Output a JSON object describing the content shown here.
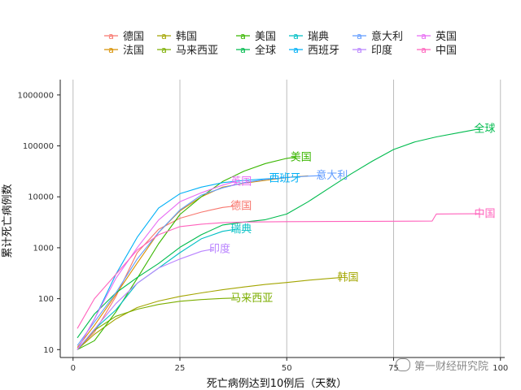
{
  "chart_data": {
    "type": "line",
    "title": "",
    "xlabel": "死亡病例达到10例后（天数）",
    "ylabel": "累计死亡病例数",
    "x_ticks": [
      0,
      25,
      50,
      75,
      100
    ],
    "y_ticks": [
      10,
      100,
      1000,
      10000,
      100000,
      1000000
    ],
    "y_tick_labels": [
      "10",
      "100",
      "1000",
      "10000",
      "100000",
      "1000000"
    ],
    "xlim": [
      -3,
      101
    ],
    "ylim": [
      7,
      2000000
    ],
    "y_scale": "log10",
    "grid": "vertical-major",
    "legend_position": "top",
    "series": [
      {
        "name": "德国",
        "color": "#F8766D",
        "end_label": "德国",
        "points": [
          [
            1,
            10
          ],
          [
            5,
            22
          ],
          [
            10,
            110
          ],
          [
            15,
            800
          ],
          [
            20,
            2300
          ],
          [
            25,
            3800
          ],
          [
            30,
            5000
          ],
          [
            35,
            6200
          ],
          [
            38,
            6600
          ]
        ]
      },
      {
        "name": "法国",
        "color": "#D89000",
        "end_label": "",
        "points": [
          [
            1,
            11
          ],
          [
            5,
            30
          ],
          [
            10,
            120
          ],
          [
            15,
            500
          ],
          [
            20,
            2000
          ],
          [
            25,
            5300
          ],
          [
            30,
            10000
          ],
          [
            35,
            15500
          ],
          [
            40,
            18500
          ],
          [
            45,
            21000
          ],
          [
            50,
            24000
          ],
          [
            55,
            25800
          ]
        ]
      },
      {
        "name": "韩国",
        "color": "#A3A500",
        "end_label": "韩国",
        "points": [
          [
            1,
            10
          ],
          [
            5,
            20
          ],
          [
            10,
            40
          ],
          [
            15,
            67
          ],
          [
            20,
            90
          ],
          [
            25,
            111
          ],
          [
            30,
            130
          ],
          [
            35,
            150
          ],
          [
            40,
            170
          ],
          [
            45,
            190
          ],
          [
            50,
            208
          ],
          [
            55,
            230
          ],
          [
            60,
            250
          ],
          [
            63,
            262
          ]
        ]
      },
      {
        "name": "马来西亚",
        "color": "#7CAE00",
        "end_label": "马来西亚",
        "points": [
          [
            1,
            10
          ],
          [
            5,
            24
          ],
          [
            10,
            45
          ],
          [
            15,
            62
          ],
          [
            20,
            77
          ],
          [
            25,
            89
          ],
          [
            30,
            96
          ],
          [
            35,
            101
          ],
          [
            38,
            103
          ]
        ]
      },
      {
        "name": "美国",
        "color": "#39B600",
        "end_label": "美国",
        "points": [
          [
            1,
            10
          ],
          [
            5,
            15
          ],
          [
            10,
            55
          ],
          [
            15,
            250
          ],
          [
            20,
            1200
          ],
          [
            25,
            4500
          ],
          [
            30,
            10000
          ],
          [
            35,
            20000
          ],
          [
            40,
            32000
          ],
          [
            45,
            45000
          ],
          [
            50,
            57000
          ],
          [
            52,
            60000
          ]
        ]
      },
      {
        "name": "全球",
        "color": "#00BB4E",
        "end_label": "全球",
        "points": [
          [
            1,
            17
          ],
          [
            5,
            50
          ],
          [
            10,
            130
          ],
          [
            15,
            260
          ],
          [
            20,
            490
          ],
          [
            25,
            1020
          ],
          [
            30,
            1800
          ],
          [
            35,
            2800
          ],
          [
            40,
            3200
          ],
          [
            45,
            3550
          ],
          [
            50,
            4600
          ],
          [
            55,
            8000
          ],
          [
            60,
            15000
          ],
          [
            65,
            28000
          ],
          [
            70,
            50000
          ],
          [
            75,
            85000
          ],
          [
            80,
            120000
          ],
          [
            85,
            150000
          ],
          [
            90,
            180000
          ],
          [
            95,
            215000
          ]
        ]
      },
      {
        "name": "瑞典",
        "color": "#00BFC4",
        "end_label": "瑞典",
        "points": [
          [
            1,
            10
          ],
          [
            5,
            25
          ],
          [
            10,
            60
          ],
          [
            15,
            200
          ],
          [
            20,
            400
          ],
          [
            25,
            800
          ],
          [
            30,
            1500
          ],
          [
            35,
            2100
          ],
          [
            38,
            2300
          ]
        ]
      },
      {
        "name": "西班牙",
        "color": "#00B0F6",
        "end_label": "西班牙",
        "points": [
          [
            1,
            10
          ],
          [
            5,
            40
          ],
          [
            10,
            300
          ],
          [
            15,
            1600
          ],
          [
            20,
            6000
          ],
          [
            25,
            11500
          ],
          [
            30,
            15500
          ],
          [
            35,
            19000
          ],
          [
            40,
            21000
          ],
          [
            45,
            22500
          ],
          [
            47,
            23000
          ]
        ]
      },
      {
        "name": "意大利",
        "color": "#619CFF",
        "end_label": "意大利",
        "points": [
          [
            1,
            12
          ],
          [
            5,
            35
          ],
          [
            10,
            130
          ],
          [
            15,
            600
          ],
          [
            20,
            2000
          ],
          [
            25,
            5500
          ],
          [
            30,
            10800
          ],
          [
            35,
            15000
          ],
          [
            40,
            19000
          ],
          [
            45,
            22000
          ],
          [
            50,
            24000
          ],
          [
            55,
            25500
          ],
          [
            58,
            26000
          ]
        ]
      },
      {
        "name": "印度",
        "color": "#B983FF",
        "end_label": "印度",
        "points": [
          [
            1,
            10
          ],
          [
            5,
            25
          ],
          [
            10,
            80
          ],
          [
            15,
            200
          ],
          [
            20,
            400
          ],
          [
            25,
            600
          ],
          [
            30,
            850
          ],
          [
            33,
            950
          ]
        ]
      },
      {
        "name": "英国",
        "color": "#E76BF3",
        "end_label": "英国",
        "points": [
          [
            1,
            10
          ],
          [
            5,
            40
          ],
          [
            10,
            250
          ],
          [
            15,
            1000
          ],
          [
            20,
            3500
          ],
          [
            25,
            8000
          ],
          [
            30,
            12000
          ],
          [
            35,
            17000
          ],
          [
            38,
            20000
          ]
        ]
      },
      {
        "name": "中国",
        "color": "#FF62BC",
        "end_label": "中国",
        "points": [
          [
            1,
            26
          ],
          [
            5,
            100
          ],
          [
            10,
            300
          ],
          [
            15,
            900
          ],
          [
            20,
            1800
          ],
          [
            25,
            2600
          ],
          [
            30,
            2900
          ],
          [
            35,
            3100
          ],
          [
            40,
            3200
          ],
          [
            50,
            3250
          ],
          [
            60,
            3280
          ],
          [
            70,
            3300
          ],
          [
            80,
            3330
          ],
          [
            84,
            3340
          ],
          [
            85,
            4600
          ],
          [
            90,
            4630
          ],
          [
            95,
            4640
          ]
        ]
      }
    ]
  },
  "watermark": {
    "text": "第一财经研究院",
    "icon": "wechat-icon"
  }
}
